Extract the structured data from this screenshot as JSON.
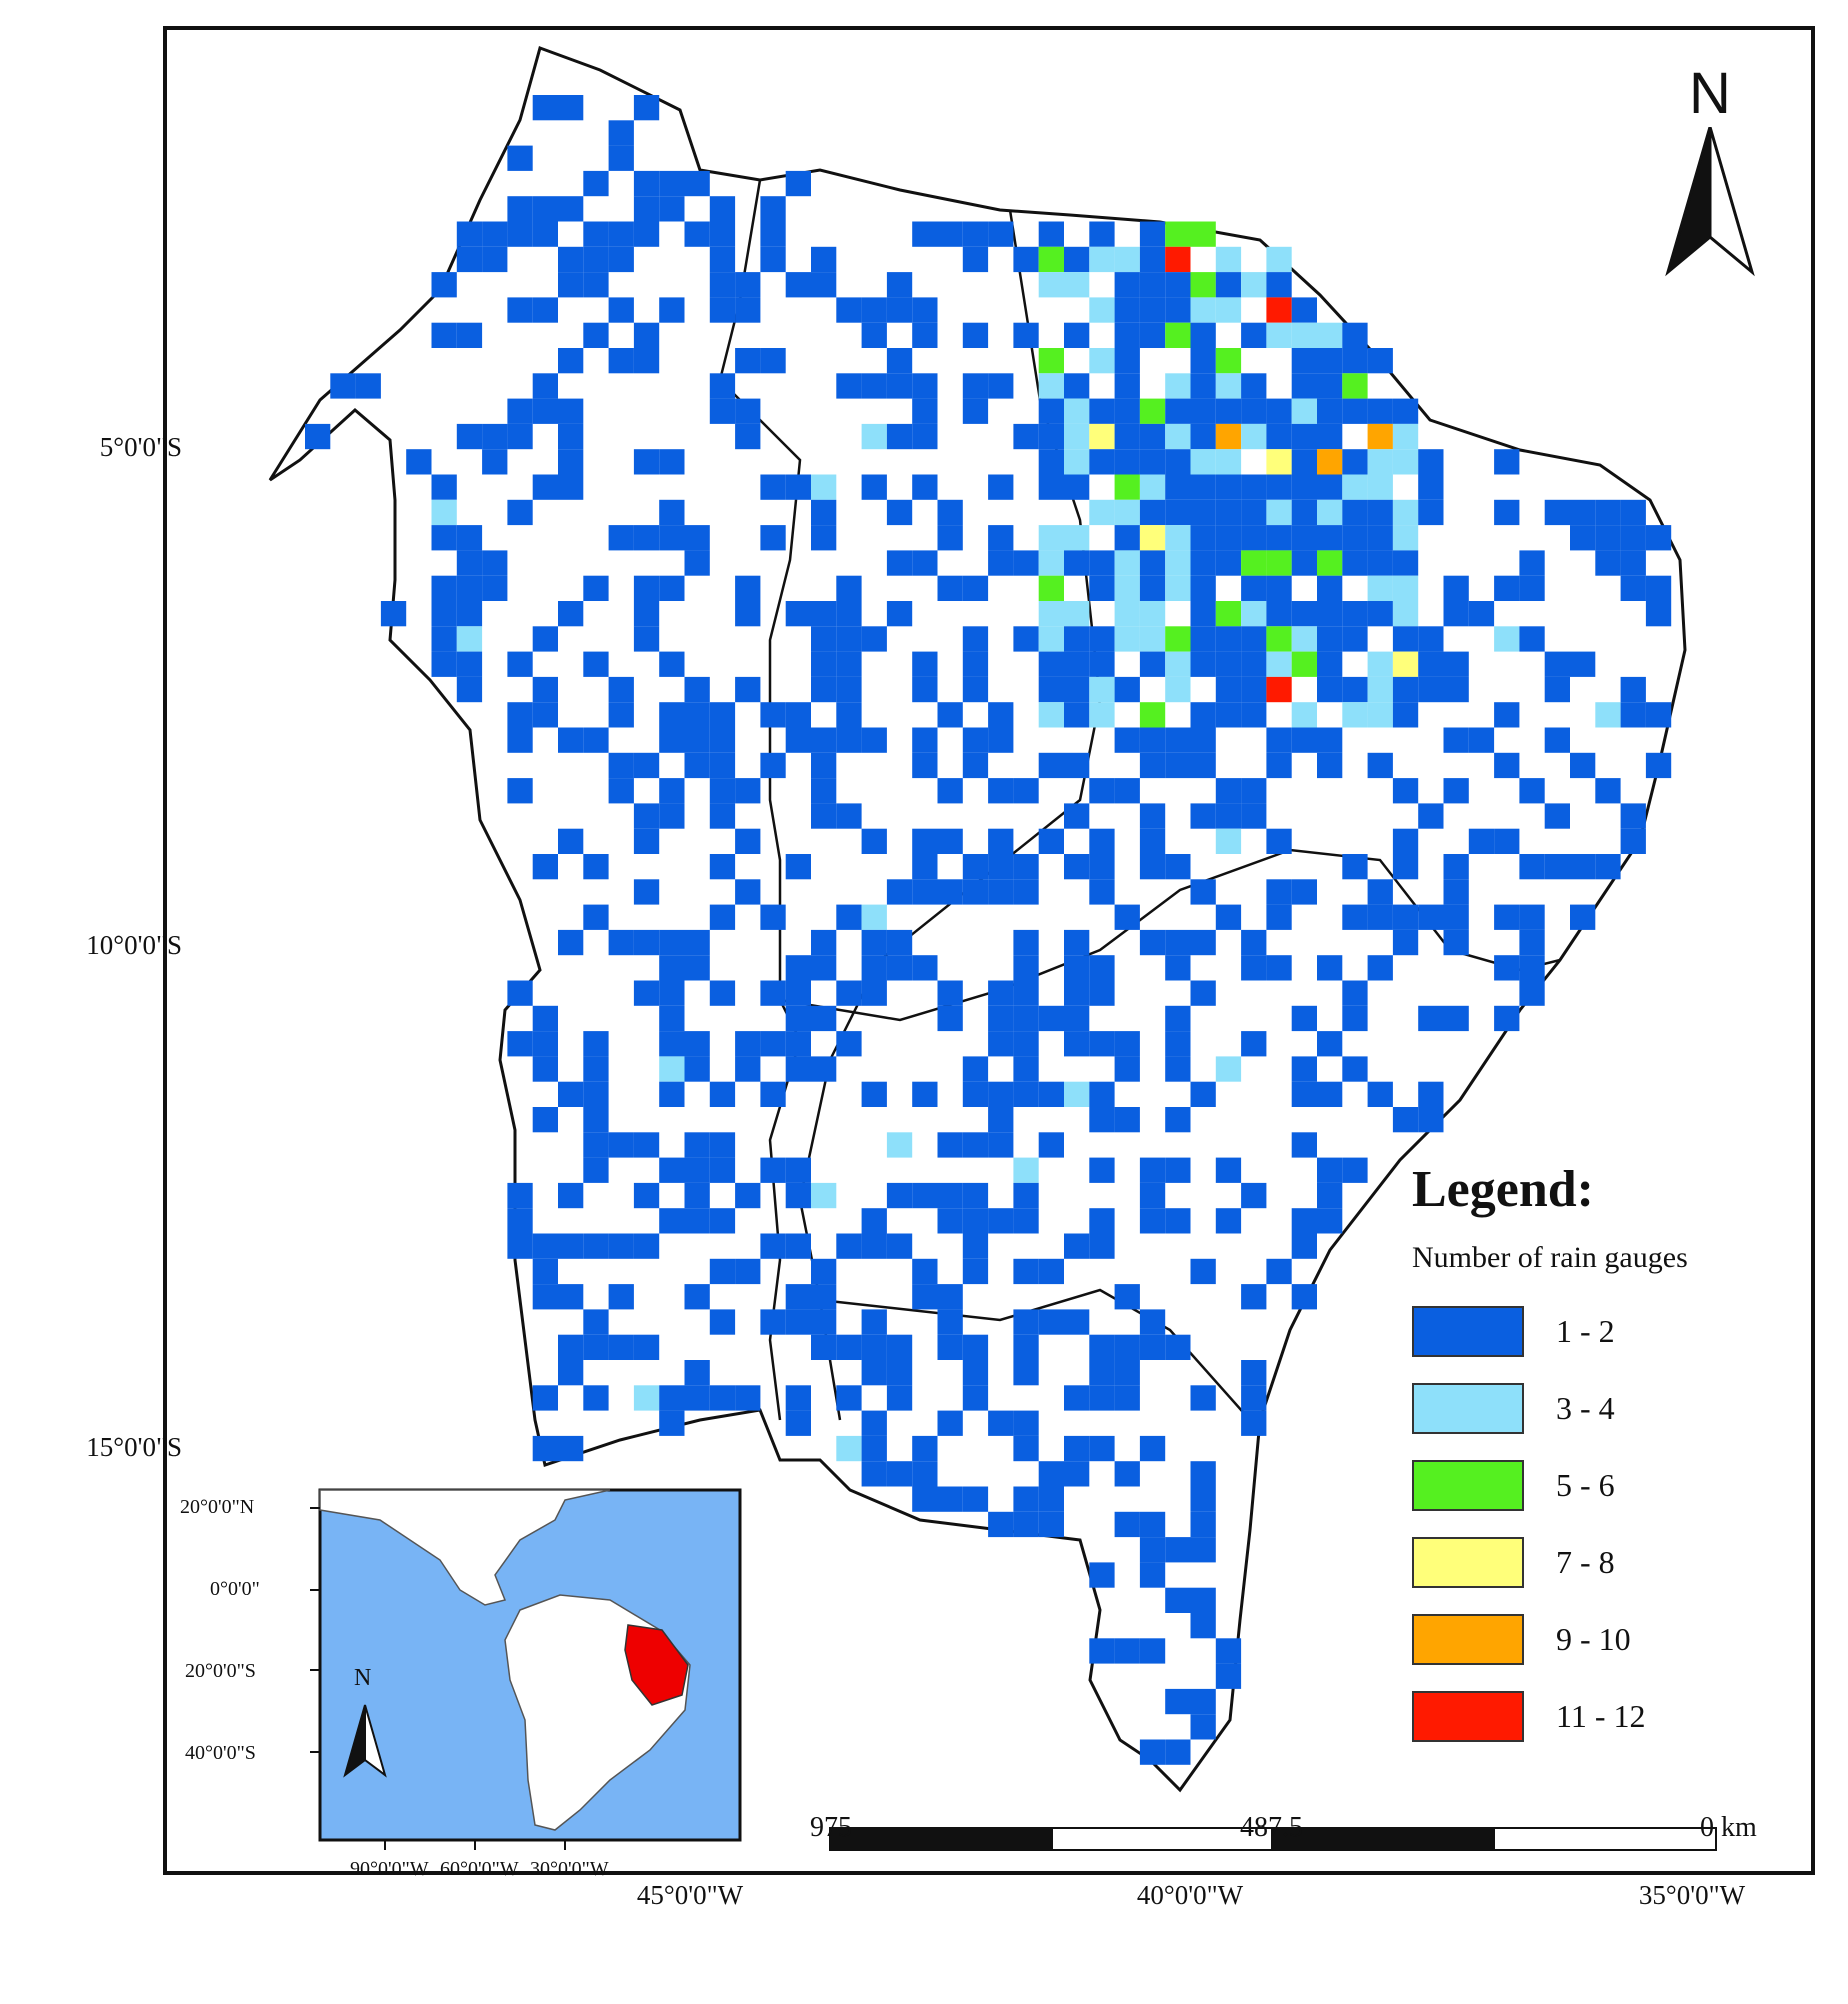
{
  "map": {
    "lat_labels": [
      "5°0'0\"S",
      "10°0'0\"S",
      "15°0'0\"S"
    ],
    "lon_labels": [
      "45°0'0\"W",
      "40°0'0\"W",
      "35°0'0\"W"
    ],
    "north_label": "N"
  },
  "legend": {
    "title": "Legend:",
    "subtitle": "Number of rain gauges",
    "classes": [
      {
        "label": "1 - 2",
        "color": "#0a5fe0"
      },
      {
        "label": "3 - 4",
        "color": "#8ee0fa"
      },
      {
        "label": "5 - 6",
        "color": "#55f020"
      },
      {
        "label": "7 - 8",
        "color": "#ffff7a"
      },
      {
        "label": "9 - 10",
        "color": "#ffa500"
      },
      {
        "label": "11 - 12",
        "color": "#ff1a00"
      }
    ]
  },
  "scale_bar": {
    "labels": [
      "975",
      "487.5",
      "0  km"
    ]
  },
  "inset": {
    "lat_labels": [
      "20°0'0\"N",
      "0°0'0\"",
      "20°0'0\"S",
      "40°0'0\"S"
    ],
    "lon_labels": [
      "90°0'0\"W",
      "60°0'0\"W",
      "30°0'0\"W"
    ],
    "north_label": "N",
    "ocean_color": "#78b4f5",
    "land_color": "#ffffff",
    "highlight_color": "#ee0000"
  }
}
